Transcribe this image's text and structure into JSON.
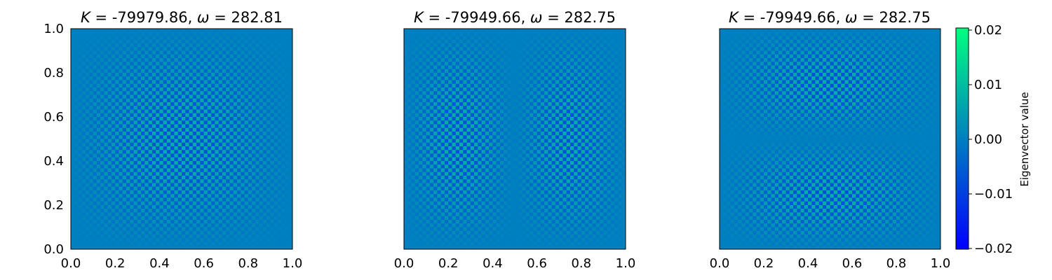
{
  "chart_data": [
    {
      "type": "heatmap",
      "mode": "radial",
      "title": {
        "k_value": "-79979.86",
        "omega_value": "282.81"
      },
      "xlim": [
        0,
        1
      ],
      "ylim": [
        0,
        1
      ],
      "x_ticks": [
        "0.0",
        "0.2",
        "0.4",
        "0.6",
        "0.8",
        "1.0"
      ],
      "y_ticks": [
        "0.0",
        "0.2",
        "0.4",
        "0.6",
        "0.8",
        "1.0"
      ],
      "show_y_axis": true
    },
    {
      "type": "heatmap",
      "mode": "vertical-node",
      "title": {
        "k_value": "-79949.66",
        "omega_value": "282.75"
      },
      "xlim": [
        0,
        1
      ],
      "ylim": [
        0,
        1
      ],
      "x_ticks": [
        "0.0",
        "0.2",
        "0.4",
        "0.6",
        "0.8",
        "1.0"
      ],
      "y_ticks": [],
      "show_y_axis": false
    },
    {
      "type": "heatmap",
      "mode": "horizontal-node",
      "title": {
        "k_value": "-79949.66",
        "omega_value": "282.75"
      },
      "xlim": [
        0,
        1
      ],
      "ylim": [
        0,
        1
      ],
      "x_ticks": [
        "0.0",
        "0.2",
        "0.4",
        "0.6",
        "0.8",
        "1.0"
      ],
      "y_ticks": [],
      "show_y_axis": false
    }
  ],
  "colorbar": {
    "label": "Eigenvector value",
    "range": [
      -0.02,
      0.02
    ],
    "ticks": [
      "0.02",
      "0.01",
      "0.00",
      "−0.01",
      "−0.02"
    ],
    "colormap": "winter",
    "colors": [
      "#0000ff",
      "#00ff80"
    ]
  },
  "title_template": {
    "k_symbol": "K",
    "omega_symbol": "ω",
    "equals": " = ",
    "separator": ", "
  }
}
